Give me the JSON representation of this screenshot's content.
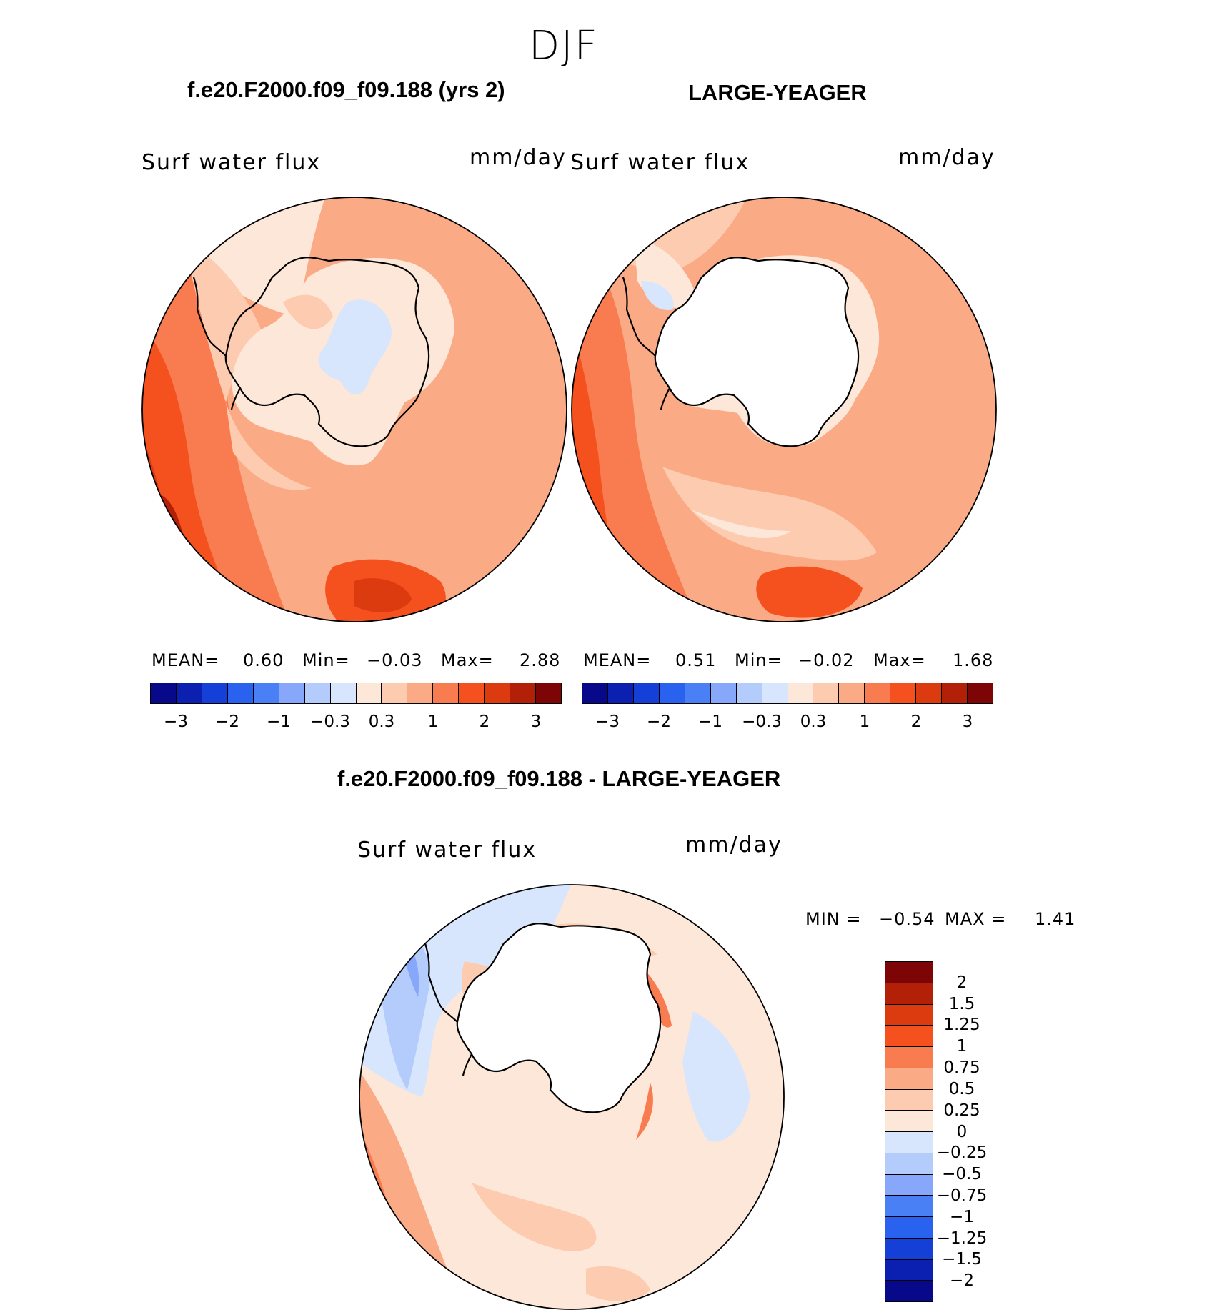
{
  "figure": {
    "season": "DJF",
    "panel1_title": "f.e20.F2000.f09_f09.188 (yrs 2)",
    "panel2_title": "LARGE-YEAGER",
    "panel3_title": "f.e20.F2000.f09_f09.188 - LARGE-YEAGER"
  },
  "panel1": {
    "var_label": "Surf water flux",
    "units": "mm/day",
    "mean_label": "MEAN=",
    "mean": "0.60",
    "min_label": "Min=",
    "min": "−0.03",
    "max_label": "Max=",
    "max": "2.88"
  },
  "panel2": {
    "var_label": "Surf water flux",
    "units": "mm/day",
    "mean_label": "MEAN=",
    "mean": "0.51",
    "min_label": "Min=",
    "min": "−0.02",
    "max_label": "Max=",
    "max": "1.68"
  },
  "panel3": {
    "var_label": "Surf water flux",
    "units": "mm/day",
    "min_label": "MIN =",
    "min": "−0.54",
    "max_label": "MAX =",
    "max": "1.41"
  },
  "colorbar_main": {
    "colors": [
      "#08088a",
      "#0b1fb0",
      "#1440d8",
      "#2a62f0",
      "#4a80f5",
      "#87a8fa",
      "#b3ccfc",
      "#d8e6fd",
      "#fde7d8",
      "#fccbb0",
      "#fbaa86",
      "#f97b50",
      "#f4511f",
      "#dc3a0f",
      "#b22008",
      "#7e0505"
    ],
    "ticks": [
      "−3",
      "−2",
      "−1",
      "−0.3",
      "0.3",
      "1",
      "2",
      "3"
    ]
  },
  "colorbar_diff": {
    "colors": [
      "#7e0505",
      "#b22008",
      "#dc3a0f",
      "#f4511f",
      "#f97b50",
      "#fbaa86",
      "#fccbb0",
      "#fde7d8",
      "#d8e6fd",
      "#b3ccfc",
      "#87a8fa",
      "#4a80f5",
      "#2a62f0",
      "#1440d8",
      "#0b1fb0",
      "#08088a"
    ],
    "ticks": [
      "2",
      "1.5",
      "1.25",
      "1",
      "0.75",
      "0.5",
      "0.25",
      "0",
      "−0.25",
      "−0.5",
      "−0.75",
      "−1",
      "−1.25",
      "−1.5",
      "−2"
    ]
  }
}
